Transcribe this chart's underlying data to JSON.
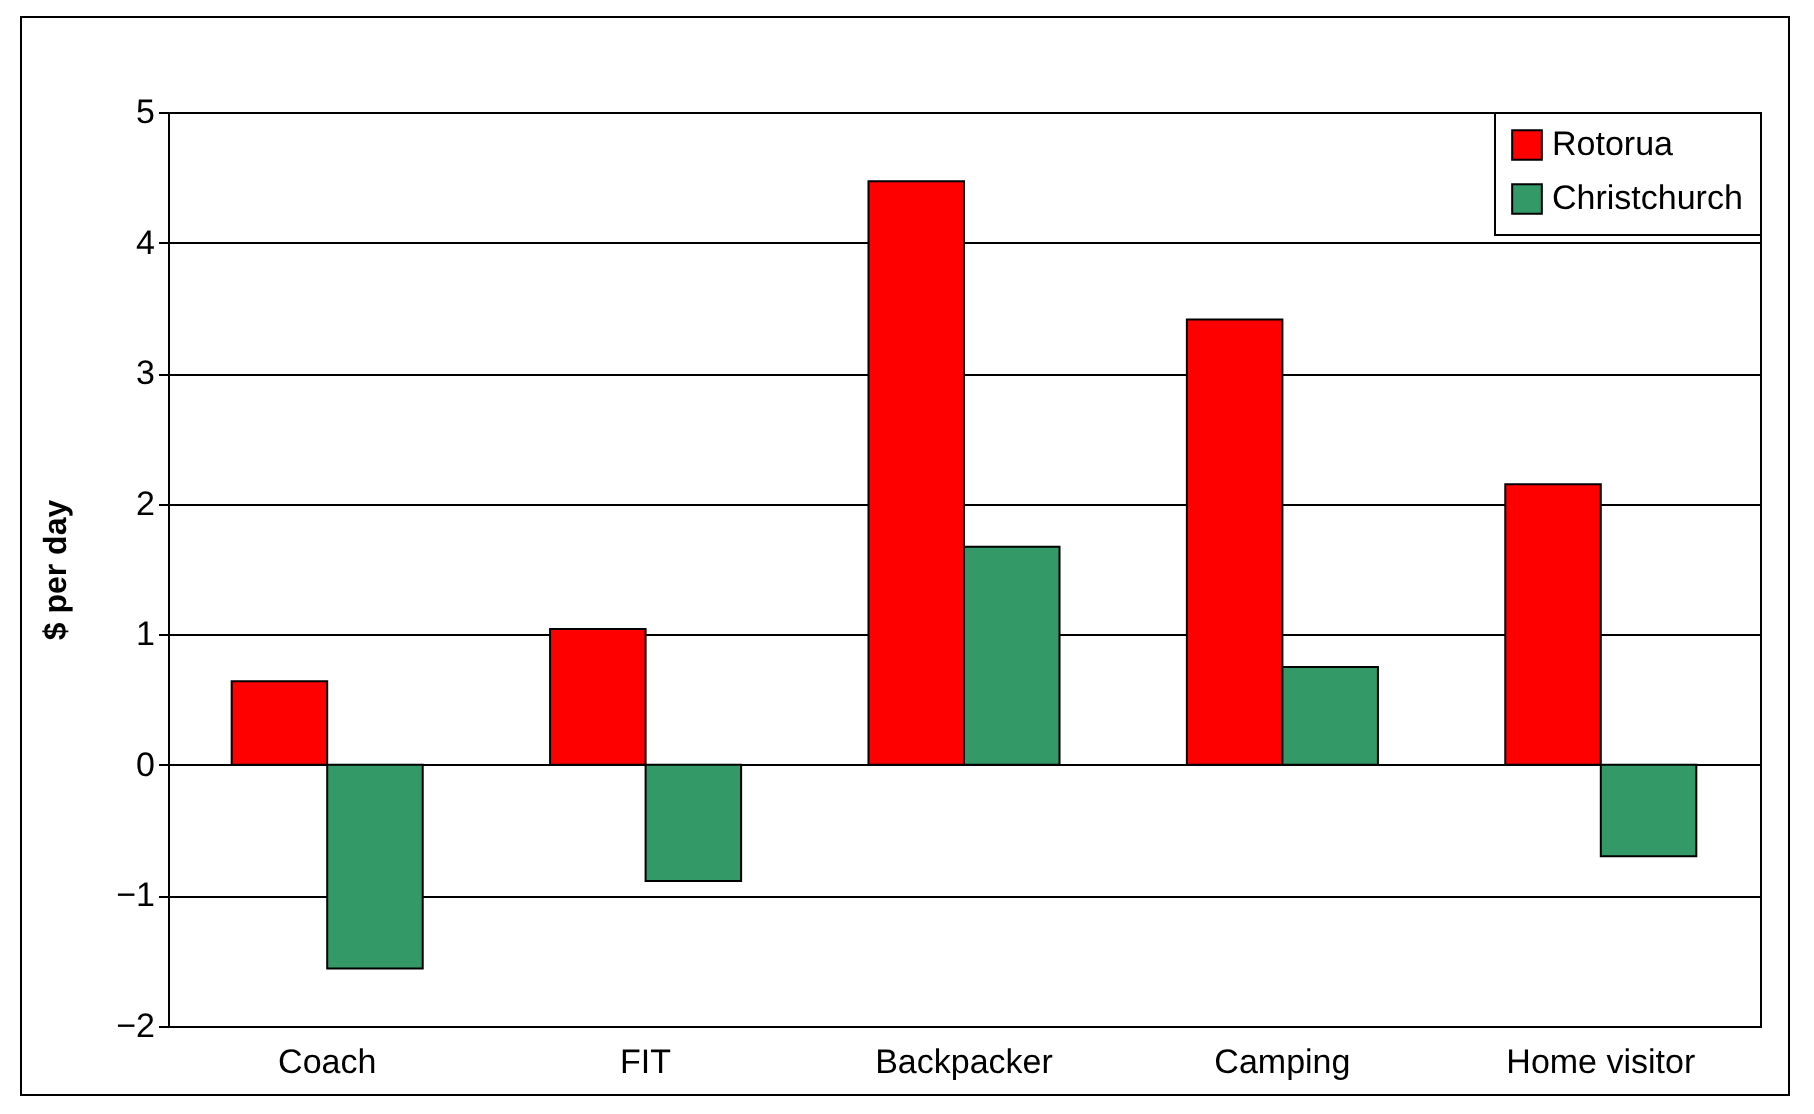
{
  "chart_data": {
    "type": "bar",
    "ylabel": "$ per day",
    "categories": [
      "Coach",
      "FIT",
      "Backpacker",
      "Camping",
      "Home visitor"
    ],
    "series": [
      {
        "name": "Rotorua",
        "color": "#ff0000",
        "values": [
          0.64,
          1.04,
          4.47,
          3.41,
          2.15
        ]
      },
      {
        "name": "Christchurch",
        "color": "#339966",
        "values": [
          -1.56,
          -0.89,
          1.67,
          0.75,
          -0.7
        ]
      }
    ],
    "ylim": [
      -2,
      5
    ],
    "yticks": [
      -2,
      -1,
      0,
      1,
      2,
      3,
      4,
      5
    ],
    "grid": "y",
    "legend": "top right"
  }
}
